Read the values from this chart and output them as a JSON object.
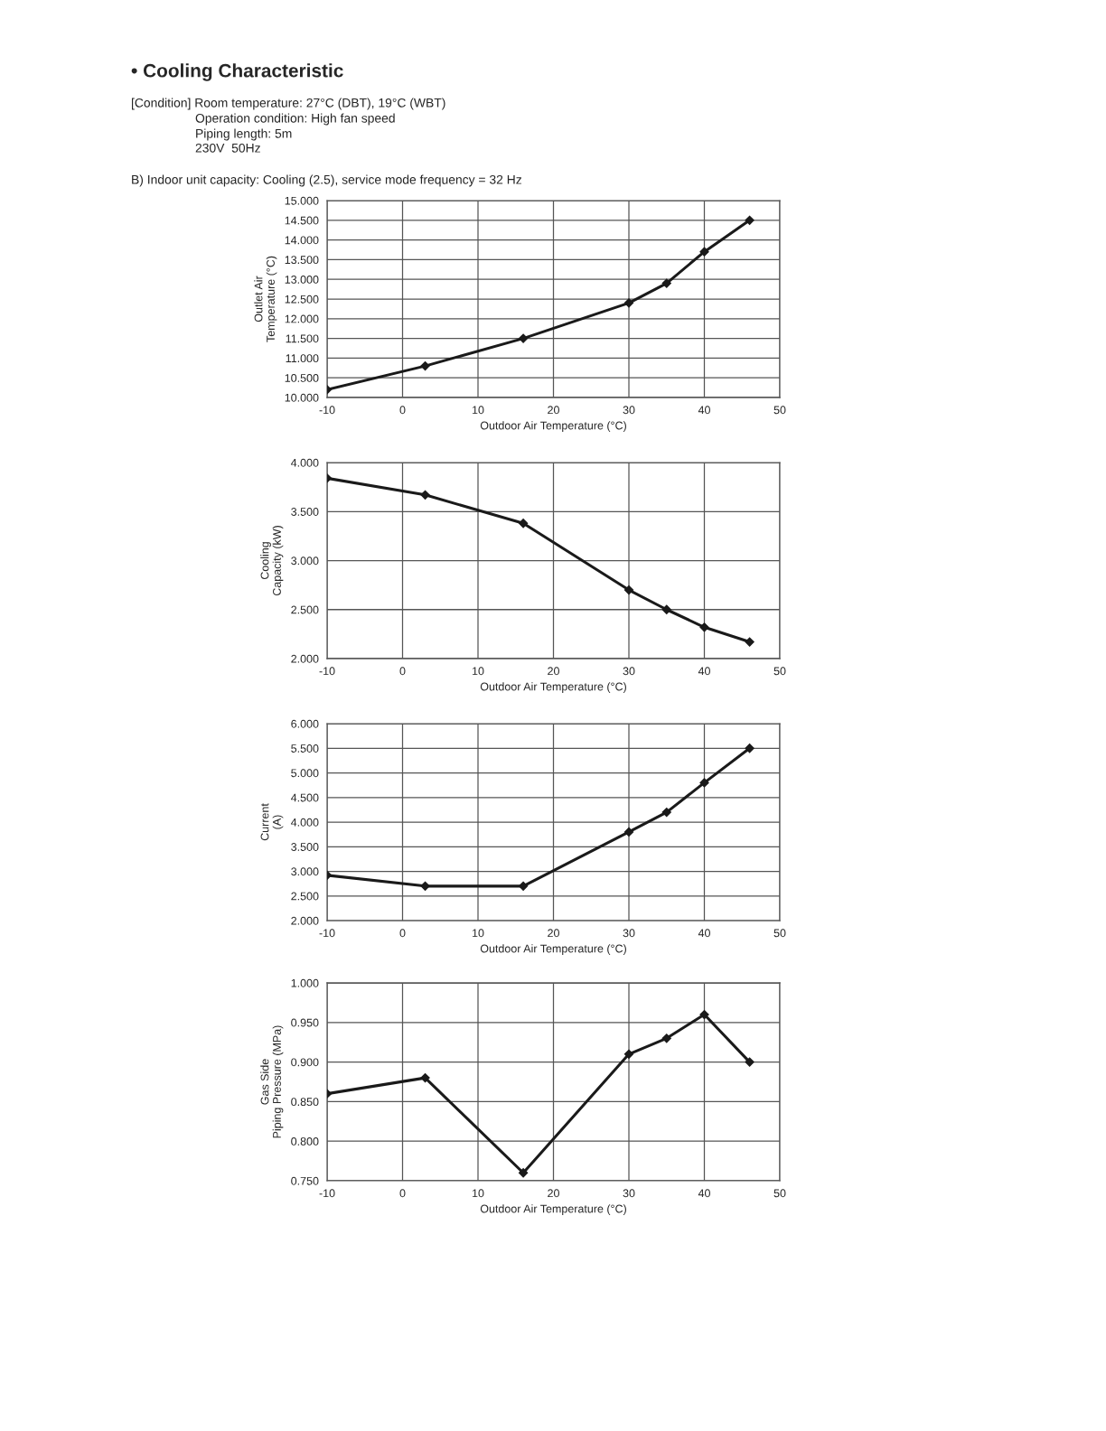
{
  "chart_data": [
    {
      "type": "line",
      "title": "• Cooling Characteristic",
      "subtitle": "B) Indoor unit capacity: Cooling (2.5), service mode frequency = 32 Hz",
      "annotations": [
        "[Condition] Room temperature: 27°C (DBT), 19°C (WBT)",
        "Operation condition: High fan speed",
        "Piping length: 5m",
        "230V  50Hz"
      ],
      "xlabel": "Outdoor Air Temperature (°C)",
      "ylabel": "Outlet Air\nTemperature (°C)",
      "x": [
        -10,
        3,
        16,
        30,
        35,
        40,
        46
      ],
      "series": [
        {
          "color": "#1a1a1a",
          "values": [
            10.2,
            10.8,
            11.5,
            12.4,
            12.9,
            13.7,
            14.5
          ]
        }
      ],
      "xlim": [
        -10,
        50
      ],
      "xticks": [
        -10,
        0,
        10,
        20,
        30,
        40,
        50
      ],
      "ylim": [
        10,
        15
      ],
      "yticks": [
        {
          "value": 10,
          "label": "10.000"
        },
        {
          "value": 10.5,
          "label": "10.500"
        },
        {
          "value": 11,
          "label": "11.000"
        },
        {
          "value": 11.5,
          "label": "11.500"
        },
        {
          "value": 12,
          "label": "12.000"
        },
        {
          "value": 12.5,
          "label": "12.500"
        },
        {
          "value": 13,
          "label": "13.000"
        },
        {
          "value": 13.5,
          "label": "13.500"
        },
        {
          "value": 14,
          "label": "14.000"
        },
        {
          "value": 14.5,
          "label": "14.500"
        },
        {
          "value": 15,
          "label": "15.000"
        }
      ],
      "grid": true,
      "marker": "diamond",
      "line_style": "solid"
    },
    {
      "type": "line",
      "xlabel": "Outdoor Air Temperature (°C)",
      "ylabel": "Cooling\nCapacity (kW)",
      "x": [
        -10,
        3,
        16,
        30,
        35,
        40,
        46
      ],
      "series": [
        {
          "color": "#1a1a1a",
          "values": [
            3.84,
            3.67,
            3.38,
            2.7,
            2.5,
            2.32,
            2.17
          ]
        }
      ],
      "xlim": [
        -10,
        50
      ],
      "xticks": [
        -10,
        0,
        10,
        20,
        30,
        40,
        50
      ],
      "ylim": [
        2,
        4
      ],
      "yticks": [
        {
          "value": 2,
          "label": "2.000"
        },
        {
          "value": 2.5,
          "label": "2.500"
        },
        {
          "value": 3,
          "label": "3.000"
        },
        {
          "value": 3.5,
          "label": "3.500"
        },
        {
          "value": 4,
          "label": "4.000"
        }
      ],
      "grid": true,
      "marker": "diamond",
      "line_style": "solid"
    },
    {
      "type": "line",
      "xlabel": "Outdoor Air Temperature (°C)",
      "ylabel": "Current\n(A)",
      "x": [
        -10,
        3,
        16,
        30,
        35,
        40,
        46
      ],
      "series": [
        {
          "color": "#1a1a1a",
          "values": [
            2.92,
            2.7,
            2.7,
            3.8,
            4.2,
            4.8,
            5.5
          ]
        }
      ],
      "xlim": [
        -10,
        50
      ],
      "xticks": [
        -10,
        0,
        10,
        20,
        30,
        40,
        50
      ],
      "ylim": [
        2,
        6
      ],
      "yticks": [
        {
          "value": 2,
          "label": "2.000"
        },
        {
          "value": 2.5,
          "label": "2.500"
        },
        {
          "value": 3,
          "label": "3.000"
        },
        {
          "value": 3.5,
          "label": "3.500"
        },
        {
          "value": 4,
          "label": "4.000"
        },
        {
          "value": 4.5,
          "label": "4.500"
        },
        {
          "value": 5,
          "label": "5.000"
        },
        {
          "value": 5.5,
          "label": "5.500"
        },
        {
          "value": 6,
          "label": "6.000"
        }
      ],
      "grid": true,
      "marker": "diamond",
      "line_style": "solid"
    },
    {
      "type": "line",
      "xlabel": "Outdoor Air Temperature (°C)",
      "ylabel": "Gas Side\nPiping Pressure (MPa)",
      "x": [
        -10,
        3,
        16,
        30,
        35,
        40,
        46
      ],
      "series": [
        {
          "color": "#1a1a1a",
          "values": [
            0.86,
            0.88,
            0.76,
            0.91,
            0.93,
            0.96,
            0.9
          ]
        }
      ],
      "xlim": [
        -10,
        50
      ],
      "xticks": [
        -10,
        0,
        10,
        20,
        30,
        40,
        50
      ],
      "ylim": [
        0.75,
        1
      ],
      "yticks": [
        {
          "value": 0.75,
          "label": "0.750"
        },
        {
          "value": 0.8,
          "label": "0.800"
        },
        {
          "value": 0.85,
          "label": "0.850"
        },
        {
          "value": 0.9,
          "label": "0.900"
        },
        {
          "value": 0.95,
          "label": "0.950"
        },
        {
          "value": 1,
          "label": "1.000"
        }
      ],
      "grid": true,
      "marker": "diamond",
      "line_style": "solid"
    }
  ]
}
